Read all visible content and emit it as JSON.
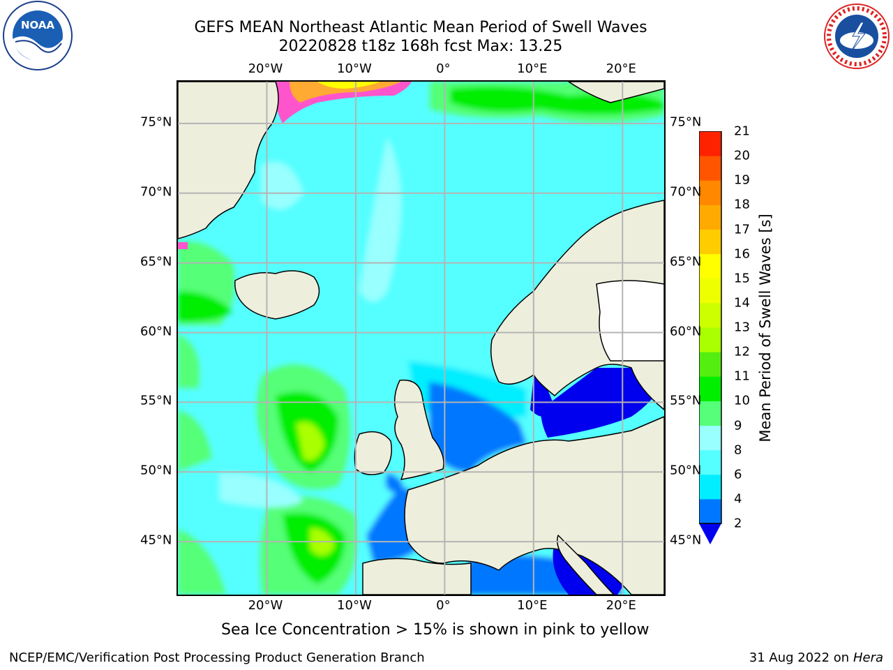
{
  "title": {
    "line1": "GEFS MEAN Northeast Atlantic Mean Period of Swell Waves",
    "line2": "20220828 t18z 168h fcst   Max: 13.25"
  },
  "logos": {
    "left": {
      "icon": "noaa-logo",
      "text": "NOAA"
    },
    "right": {
      "icon": "national-weather-service-logo",
      "text": "NATIONAL WEATHER SERVICE"
    }
  },
  "map": {
    "region": "Northeast Atlantic",
    "projection": "lat-lon",
    "lon_range": [
      -30,
      25
    ],
    "lat_range": [
      41,
      78
    ],
    "lon_ticks": [
      {
        "value": -20,
        "label": "20°W"
      },
      {
        "value": -10,
        "label": "10°W"
      },
      {
        "value": 0,
        "label": "0°"
      },
      {
        "value": 10,
        "label": "10°E"
      },
      {
        "value": 20,
        "label": "20°E"
      }
    ],
    "lat_ticks": [
      {
        "value": 75,
        "label": "75°N"
      },
      {
        "value": 70,
        "label": "70°N"
      },
      {
        "value": 65,
        "label": "65°N"
      },
      {
        "value": 60,
        "label": "60°N"
      },
      {
        "value": 55,
        "label": "55°N"
      },
      {
        "value": 50,
        "label": "50°N"
      },
      {
        "value": 45,
        "label": "45°N"
      }
    ],
    "grid": true,
    "colors": {
      "land": "#eeeedd",
      "ocean_default": "#55ffff",
      "gridline": "#b4b4b4",
      "coastline": "#000000",
      "missing": "#ffffff"
    }
  },
  "colorbar": {
    "label": "Mean Period of Swell Waves [s]",
    "units": "s",
    "extend": "min",
    "under_color": "#0000ee",
    "levels": [
      2,
      4,
      6,
      8,
      9,
      10,
      11,
      12,
      13,
      14,
      15,
      16,
      17,
      18,
      19,
      20,
      21
    ],
    "tick_labels": [
      "2",
      "4",
      "6",
      "8",
      "9",
      "10",
      "11",
      "12",
      "13",
      "14",
      "15",
      "16",
      "17",
      "18",
      "19",
      "20",
      "21"
    ],
    "colors": [
      "#0077ff",
      "#00eeff",
      "#55ffff",
      "#99ffff",
      "#55ff77",
      "#00ee00",
      "#55ee11",
      "#aaff00",
      "#ccff00",
      "#eeff00",
      "#ffff00",
      "#ffcc00",
      "#ffaa00",
      "#ff8800",
      "#ff5500",
      "#ff2200"
    ]
  },
  "footnote": "Sea Ice Concentration > 15% is shown in pink to yellow",
  "credit": "NCEP/EMC/Verification Post Processing Product Generation Branch",
  "date": "31 Aug 2022 on",
  "host": "Hera"
}
